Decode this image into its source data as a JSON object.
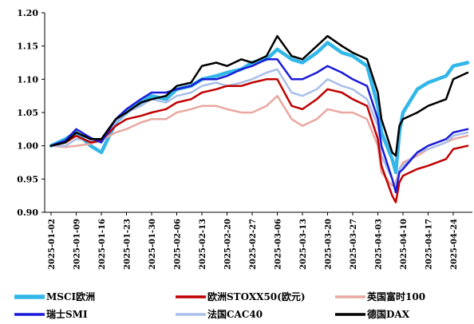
{
  "chart_data": {
    "type": "line",
    "title": "",
    "xlabel": "",
    "ylabel": "",
    "ylim": [
      0.9,
      1.2
    ],
    "yticks": [
      "0.90",
      "0.95",
      "1.00",
      "1.05",
      "1.10",
      "1.15",
      "1.20"
    ],
    "xticks": [
      "2025-01-02",
      "2025-01-09",
      "2025-01-16",
      "2025-01-23",
      "2025-01-30",
      "2025-02-06",
      "2025-02-13",
      "2025-02-20",
      "2025-02-27",
      "2025-03-06",
      "2025-03-13",
      "2025-03-20",
      "2025-03-27",
      "2025-04-03",
      "2025-04-10",
      "2025-04-17",
      "2025-04-24"
    ],
    "x": [
      "2025-01-02",
      "2025-01-06",
      "2025-01-09",
      "2025-01-13",
      "2025-01-16",
      "2025-01-20",
      "2025-01-23",
      "2025-01-27",
      "2025-01-30",
      "2025-02-03",
      "2025-02-06",
      "2025-02-10",
      "2025-02-13",
      "2025-02-17",
      "2025-02-20",
      "2025-02-24",
      "2025-02-27",
      "2025-03-03",
      "2025-03-06",
      "2025-03-10",
      "2025-03-13",
      "2025-03-17",
      "2025-03-20",
      "2025-03-24",
      "2025-03-27",
      "2025-03-31",
      "2025-04-03",
      "2025-04-04",
      "2025-04-07",
      "2025-04-08",
      "2025-04-09",
      "2025-04-10",
      "2025-04-14",
      "2025-04-17",
      "2025-04-22",
      "2025-04-24",
      "2025-04-28"
    ],
    "grid": false,
    "legend_position": "bottom",
    "series": [
      {
        "name": "MSCI欧洲",
        "color": "#33b7e8",
        "width": 4.5,
        "values": [
          1.0,
          1.01,
          1.02,
          1.0,
          0.99,
          1.035,
          1.05,
          1.065,
          1.075,
          1.07,
          1.085,
          1.09,
          1.1,
          1.105,
          1.11,
          1.115,
          1.125,
          1.13,
          1.145,
          1.13,
          1.125,
          1.14,
          1.155,
          1.14,
          1.135,
          1.12,
          1.06,
          1.02,
          0.98,
          0.96,
          1.02,
          1.05,
          1.085,
          1.095,
          1.105,
          1.12,
          1.125
        ]
      },
      {
        "name": "欧洲STOXX50(欧元)",
        "color": "#c00000",
        "width": 2.5,
        "values": [
          1.0,
          1.005,
          1.015,
          1.005,
          1.008,
          1.03,
          1.04,
          1.045,
          1.05,
          1.055,
          1.065,
          1.07,
          1.08,
          1.085,
          1.09,
          1.09,
          1.095,
          1.1,
          1.1,
          1.06,
          1.055,
          1.07,
          1.085,
          1.08,
          1.07,
          1.06,
          1.01,
          0.97,
          0.925,
          0.915,
          0.945,
          0.955,
          0.965,
          0.97,
          0.98,
          0.995,
          1.0
        ]
      },
      {
        "name": "英国富时100",
        "color": "#e8a8a0",
        "width": 2.5,
        "values": [
          1.0,
          0.998,
          1.0,
          1.003,
          1.008,
          1.02,
          1.025,
          1.035,
          1.04,
          1.04,
          1.05,
          1.055,
          1.06,
          1.06,
          1.055,
          1.05,
          1.05,
          1.06,
          1.075,
          1.04,
          1.03,
          1.04,
          1.055,
          1.05,
          1.05,
          1.04,
          1.0,
          0.96,
          0.94,
          0.945,
          0.965,
          0.975,
          0.985,
          0.995,
          1.005,
          1.01,
          1.015
        ]
      },
      {
        "name": "瑞士SMI",
        "color": "#1a1ad8",
        "width": 2.5,
        "values": [
          1.0,
          1.008,
          1.025,
          1.012,
          1.005,
          1.04,
          1.055,
          1.07,
          1.08,
          1.08,
          1.085,
          1.09,
          1.1,
          1.1,
          1.105,
          1.115,
          1.12,
          1.13,
          1.13,
          1.1,
          1.1,
          1.11,
          1.12,
          1.11,
          1.1,
          1.09,
          1.04,
          1.0,
          0.95,
          0.93,
          0.96,
          0.965,
          0.99,
          1.0,
          1.01,
          1.02,
          1.025
        ]
      },
      {
        "name": "法国CAC40",
        "color": "#a8bfe8",
        "width": 2.5,
        "values": [
          1.0,
          1.0,
          1.01,
          1.008,
          1.005,
          1.035,
          1.05,
          1.06,
          1.07,
          1.065,
          1.075,
          1.08,
          1.09,
          1.095,
          1.09,
          1.095,
          1.1,
          1.11,
          1.115,
          1.08,
          1.075,
          1.085,
          1.1,
          1.09,
          1.085,
          1.07,
          1.03,
          0.985,
          0.95,
          0.935,
          0.965,
          0.97,
          0.99,
          0.995,
          1.005,
          1.015,
          1.02
        ]
      },
      {
        "name": "德国DAX",
        "color": "#000000",
        "width": 2.5,
        "values": [
          1.0,
          1.005,
          1.02,
          1.01,
          1.01,
          1.04,
          1.05,
          1.065,
          1.07,
          1.075,
          1.09,
          1.095,
          1.12,
          1.125,
          1.12,
          1.13,
          1.125,
          1.135,
          1.165,
          1.135,
          1.13,
          1.15,
          1.165,
          1.15,
          1.14,
          1.13,
          1.08,
          1.04,
          0.99,
          0.985,
          1.03,
          1.04,
          1.05,
          1.06,
          1.07,
          1.1,
          1.11
        ]
      }
    ]
  }
}
